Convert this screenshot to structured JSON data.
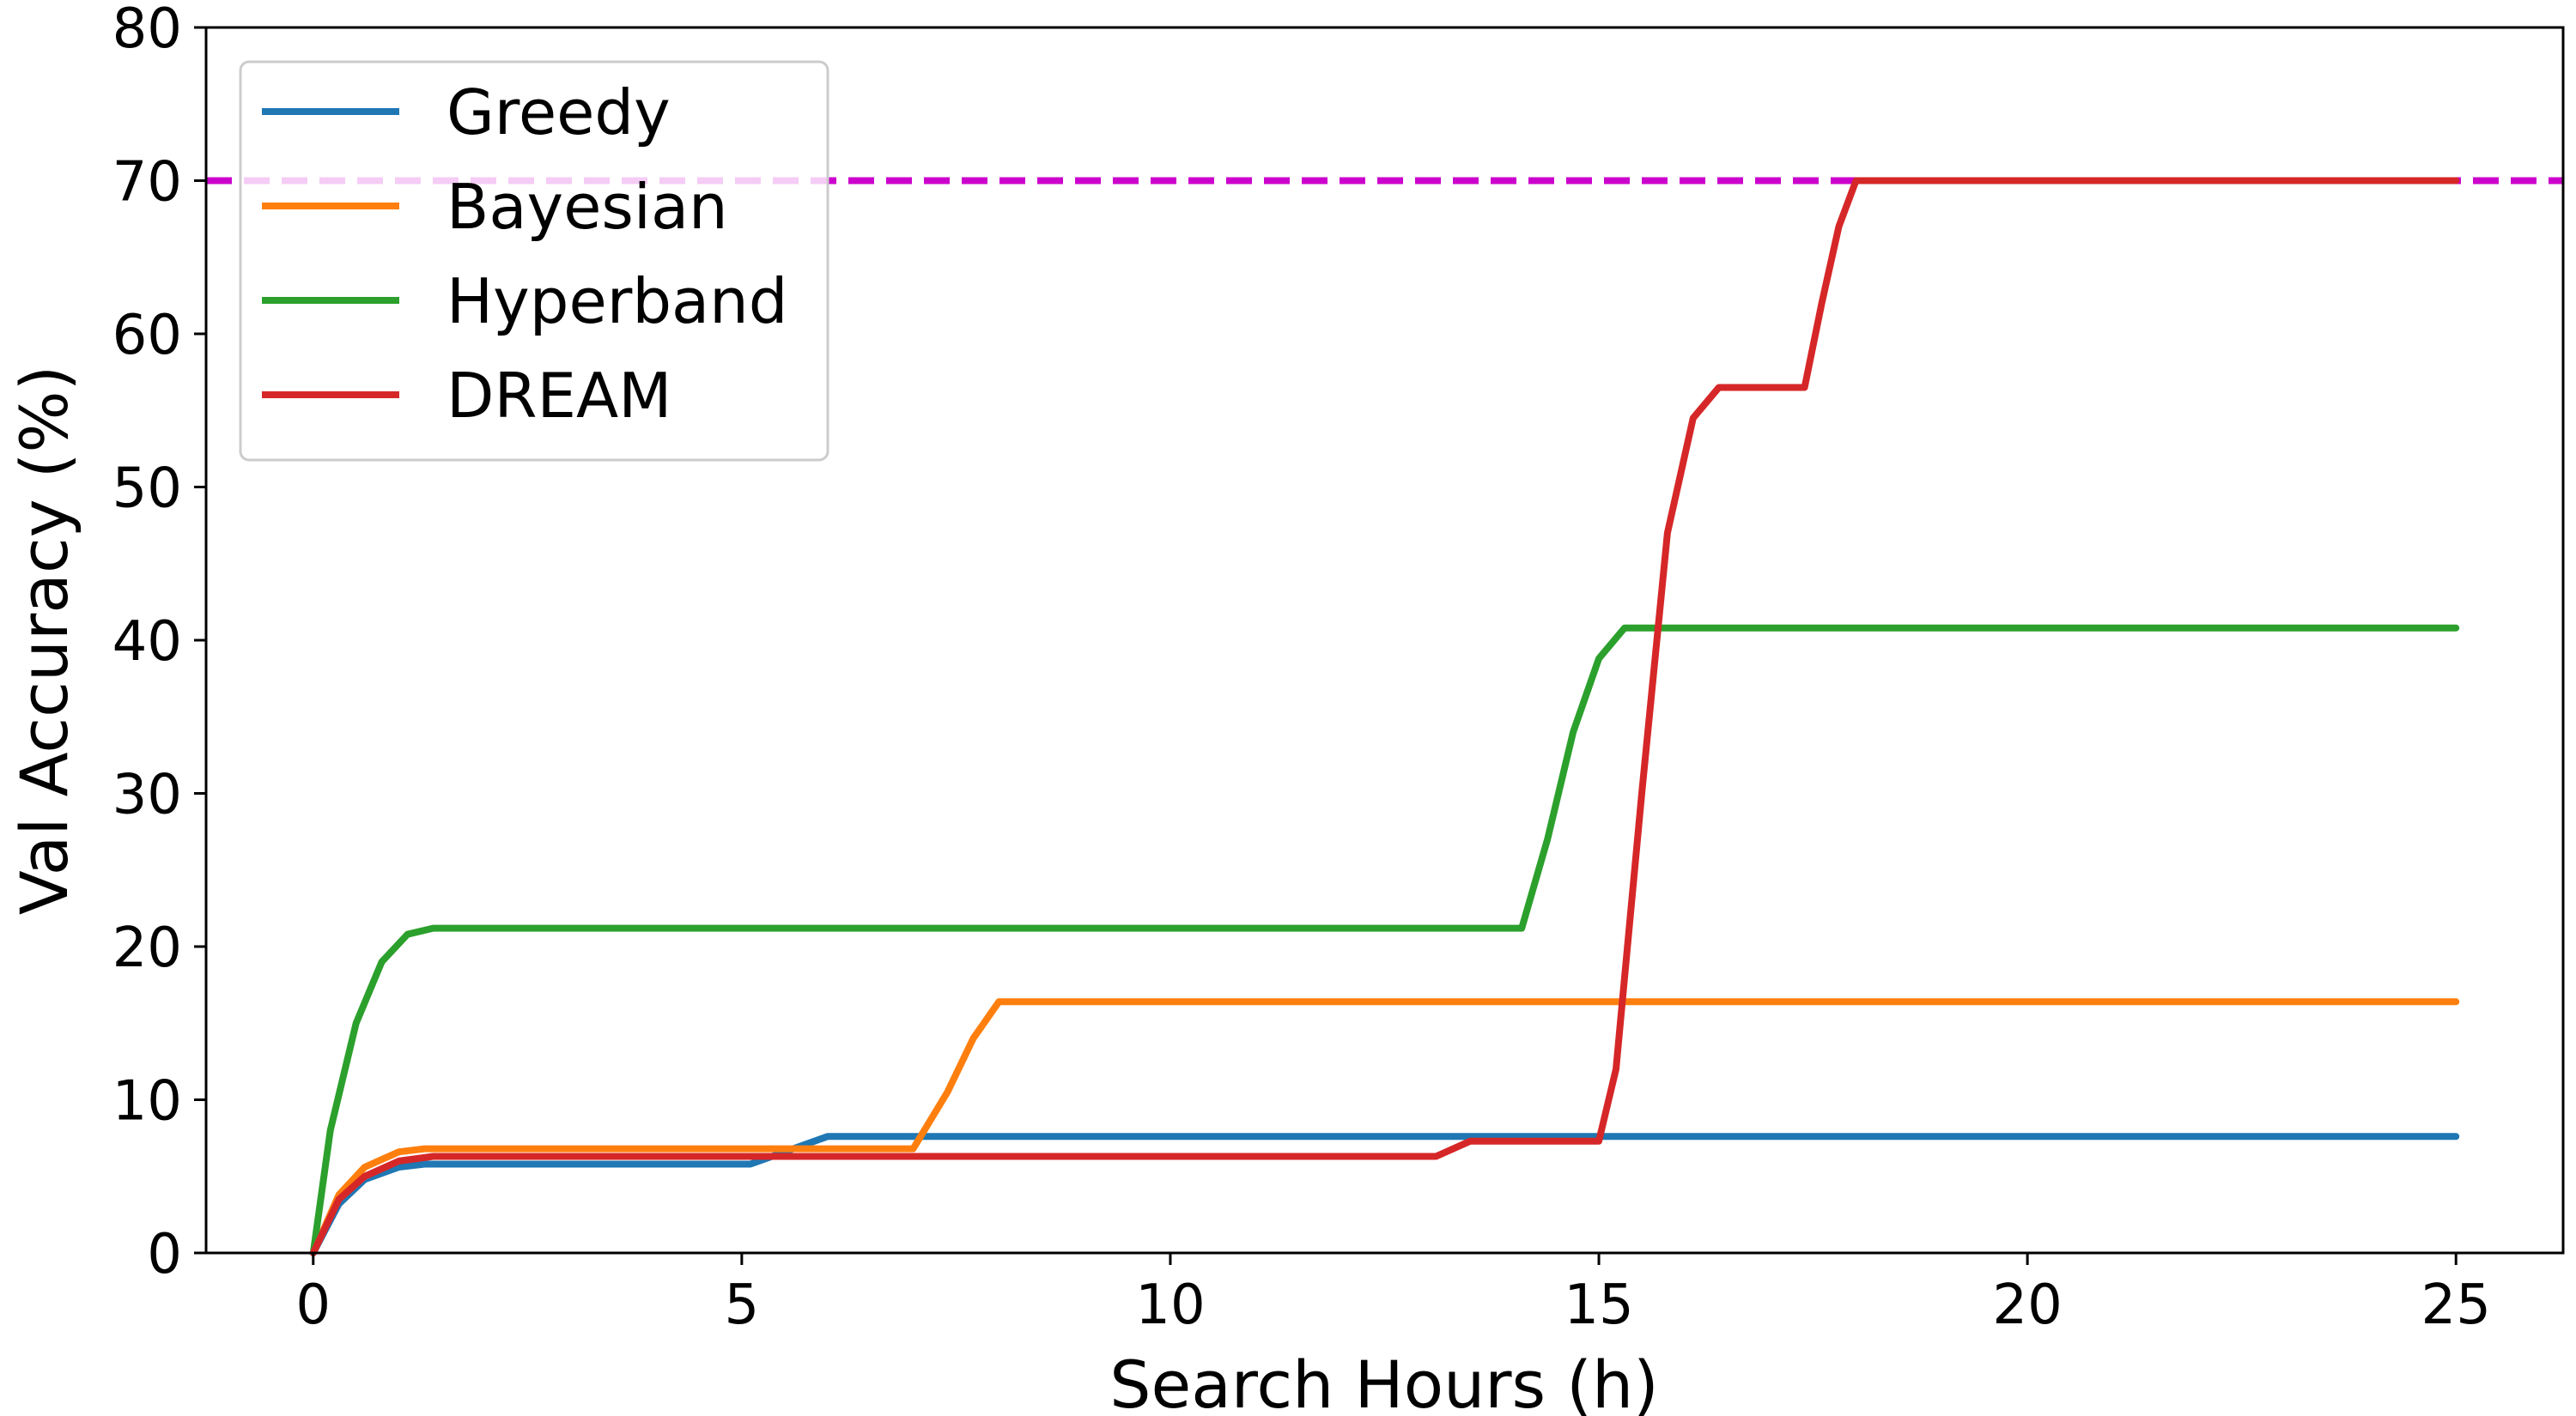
{
  "chart_data": {
    "type": "line",
    "xlabel": "Search Hours (h)",
    "ylabel": "Val Accuracy (%)",
    "xlim": [
      -1.25,
      26.25
    ],
    "ylim": [
      0,
      80
    ],
    "x_ticks": [
      "0",
      "5",
      "10",
      "15",
      "20",
      "25"
    ],
    "y_ticks": [
      "0",
      "10",
      "20",
      "30",
      "40",
      "50",
      "60",
      "70",
      "80"
    ],
    "grid": false,
    "legend_position": "top-left",
    "reference_line": {
      "y": 70,
      "color": "#cc00cc",
      "style": "dashed"
    },
    "series": [
      {
        "name": "Greedy",
        "color": "#1f77b4",
        "x": [
          0,
          0.3,
          0.6,
          1.0,
          1.3,
          5.1,
          5.5,
          6.0,
          25
        ],
        "y": [
          0,
          3.2,
          4.8,
          5.6,
          5.8,
          5.8,
          6.6,
          7.6,
          7.6
        ]
      },
      {
        "name": "Bayesian",
        "color": "#ff7f0e",
        "x": [
          0,
          0.3,
          0.6,
          1.0,
          1.3,
          7.0,
          7.4,
          7.7,
          8.0,
          25
        ],
        "y": [
          0,
          3.8,
          5.6,
          6.6,
          6.8,
          6.8,
          10.5,
          14.0,
          16.4,
          16.4
        ]
      },
      {
        "name": "Hyperband",
        "color": "#2ca02c",
        "x": [
          0,
          0.2,
          0.5,
          0.8,
          1.1,
          1.4,
          14.1,
          14.4,
          14.7,
          15.0,
          15.3,
          25
        ],
        "y": [
          0,
          8.0,
          15.0,
          19.0,
          20.8,
          21.2,
          21.2,
          27.0,
          34.0,
          38.8,
          40.8,
          40.8
        ]
      },
      {
        "name": "DREAM",
        "color": "#d62728",
        "x": [
          0,
          0.3,
          0.6,
          1.0,
          1.4,
          13.1,
          13.5,
          15.0,
          15.2,
          15.5,
          15.8,
          16.1,
          16.4,
          17.4,
          17.6,
          17.8,
          18.0,
          25
        ],
        "y": [
          0,
          3.5,
          5.0,
          6.0,
          6.3,
          6.3,
          7.3,
          7.3,
          12.0,
          30.0,
          47.0,
          54.5,
          56.5,
          56.5,
          62.0,
          67.0,
          70.0,
          70.0
        ]
      }
    ]
  }
}
